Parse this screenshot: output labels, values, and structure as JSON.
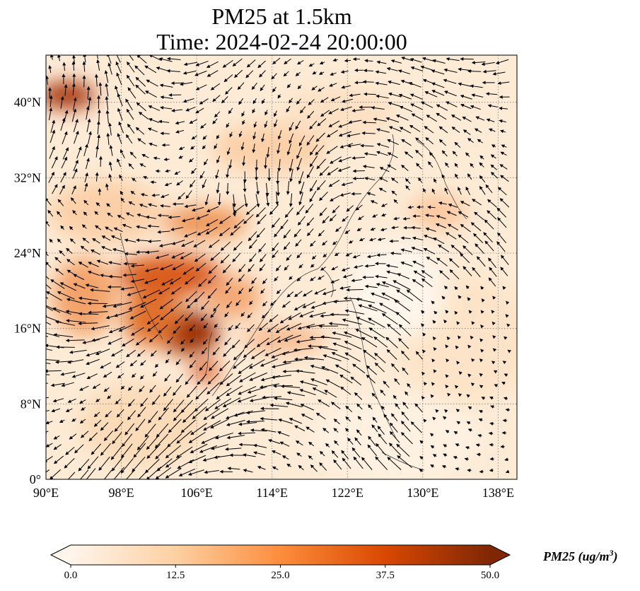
{
  "title": "PM25 at 1.5km",
  "subtitle": "Time: 2024-02-24 20:00:00",
  "map": {
    "lon_range": [
      90,
      140
    ],
    "lat_range": [
      0,
      45
    ],
    "x_ticks": [
      "90°E",
      "98°E",
      "106°E",
      "114°E",
      "122°E",
      "130°E",
      "138°E"
    ],
    "y_ticks": [
      "0°",
      "8°N",
      "16°N",
      "24°N",
      "32°N",
      "40°N"
    ],
    "grid": "dotted"
  },
  "colorbar": {
    "label": "PM25 (ug/m",
    "label_sup": "3",
    "label_close": ")",
    "ticks": [
      "0.0",
      "12.5",
      "25.0",
      "37.5",
      "50.0"
    ],
    "range": [
      0,
      50
    ],
    "extend": "both",
    "colors": [
      "#fff5eb",
      "#fdd0a2",
      "#fd8d3c",
      "#d94801",
      "#7f2704"
    ]
  }
}
